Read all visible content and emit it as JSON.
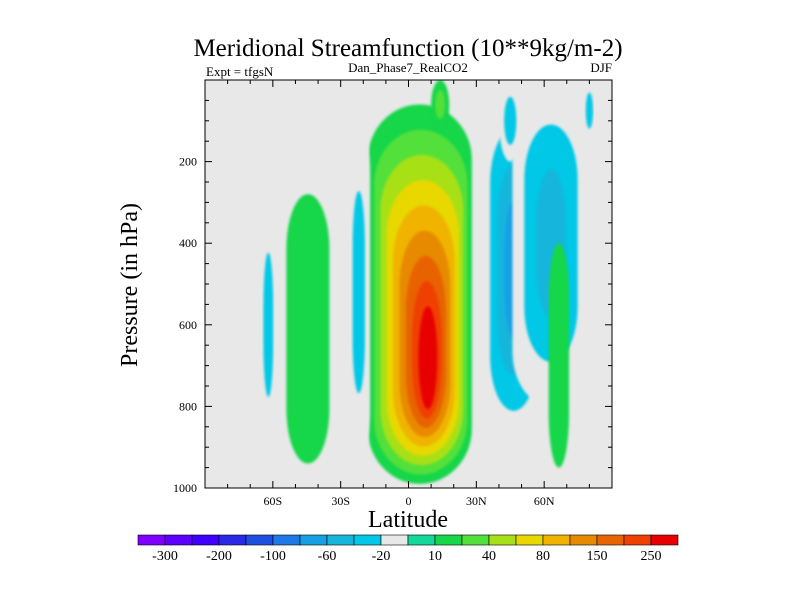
{
  "chart_data": {
    "type": "contour",
    "title": "Meridional Streamfunction (10**9kg/m-2)",
    "subtitle_left": "Expt = tfgsN",
    "subtitle_center": "Dan_Phase7_RealCO2",
    "subtitle_right": "DJF",
    "xlabel": "Latitude",
    "ylabel": "Pressure (in hPa)",
    "xlim": [
      -90,
      90
    ],
    "ylim": [
      1000,
      0
    ],
    "x_ticks": [
      {
        "value": -60,
        "label": "60S"
      },
      {
        "value": -30,
        "label": "30S"
      },
      {
        "value": 0,
        "label": "0"
      },
      {
        "value": 30,
        "label": "30N"
      },
      {
        "value": 60,
        "label": "60N"
      }
    ],
    "y_ticks": [
      {
        "value": 200,
        "label": "200"
      },
      {
        "value": 400,
        "label": "400"
      },
      {
        "value": 600,
        "label": "600"
      },
      {
        "value": 800,
        "label": "800"
      },
      {
        "value": 1000,
        "label": "1000"
      }
    ],
    "contour_levels": [
      -300,
      -250,
      -200,
      -150,
      -100,
      -80,
      -60,
      -40,
      -20,
      -10,
      10,
      20,
      40,
      60,
      80,
      100,
      150,
      200,
      250,
      300
    ],
    "colorbar_labels": [
      {
        "level_index": 0,
        "label": "-300"
      },
      {
        "level_index": 2,
        "label": "-200"
      },
      {
        "level_index": 4,
        "label": "-100"
      },
      {
        "level_index": 6,
        "label": "-60"
      },
      {
        "level_index": 8,
        "label": "-20"
      },
      {
        "level_index": 10,
        "label": "10"
      },
      {
        "level_index": 12,
        "label": "40"
      },
      {
        "level_index": 14,
        "label": "80"
      },
      {
        "level_index": 16,
        "label": "150"
      },
      {
        "level_index": 18,
        "label": "250"
      }
    ],
    "colorbar_colors": [
      "#7f00ff",
      "#5f00ff",
      "#3f00ff",
      "#2a2ae6",
      "#1f4fe0",
      "#1e78e8",
      "#15a0e6",
      "#14b6dc",
      "#00c8e6",
      "#e8e8e8",
      "#12d899",
      "#16d64a",
      "#52e03a",
      "#a8e018",
      "#e8d800",
      "#f0b400",
      "#e88a00",
      "#e86400",
      "#f04000",
      "#e80000"
    ],
    "features": [
      {
        "name": "main-cell",
        "lat": [
          -18,
          28
        ],
        "p": [
          60,
          990
        ],
        "peak": 250,
        "peak_lat": 9,
        "peak_p": 700
      },
      {
        "name": "tropical-top-tongue",
        "lat": [
          10,
          18
        ],
        "p": [
          0,
          120
        ],
        "peak": 20
      },
      {
        "name": "nh-cell-a",
        "lat": [
          33,
          60
        ],
        "p": [
          30,
          900
        ],
        "peak": -60
      },
      {
        "name": "nh-cell-b",
        "lat": [
          46,
          80
        ],
        "p": [
          0,
          800
        ],
        "peak": -40
      },
      {
        "name": "nh-upper-finger-a",
        "lat": [
          40,
          50
        ],
        "p": [
          0,
          200
        ],
        "peak": -20
      },
      {
        "name": "nh-upper-finger-b",
        "lat": [
          77,
          83
        ],
        "p": [
          0,
          150
        ],
        "peak": -20
      },
      {
        "name": "nh-positive-band",
        "lat": [
          62,
          71
        ],
        "p": [
          400,
          950
        ],
        "peak": 10
      },
      {
        "name": "sh-cell-narrow",
        "lat": [
          -66,
          -58
        ],
        "p": [
          300,
          900
        ],
        "peak": -20
      },
      {
        "name": "sh-cell-wide",
        "lat": [
          -54,
          -35
        ],
        "p": [
          280,
          940
        ],
        "peak": 10
      },
      {
        "name": "sh-negative-left",
        "lat": [
          -27,
          -17
        ],
        "p": [
          100,
          940
        ],
        "peak": -20
      }
    ]
  }
}
